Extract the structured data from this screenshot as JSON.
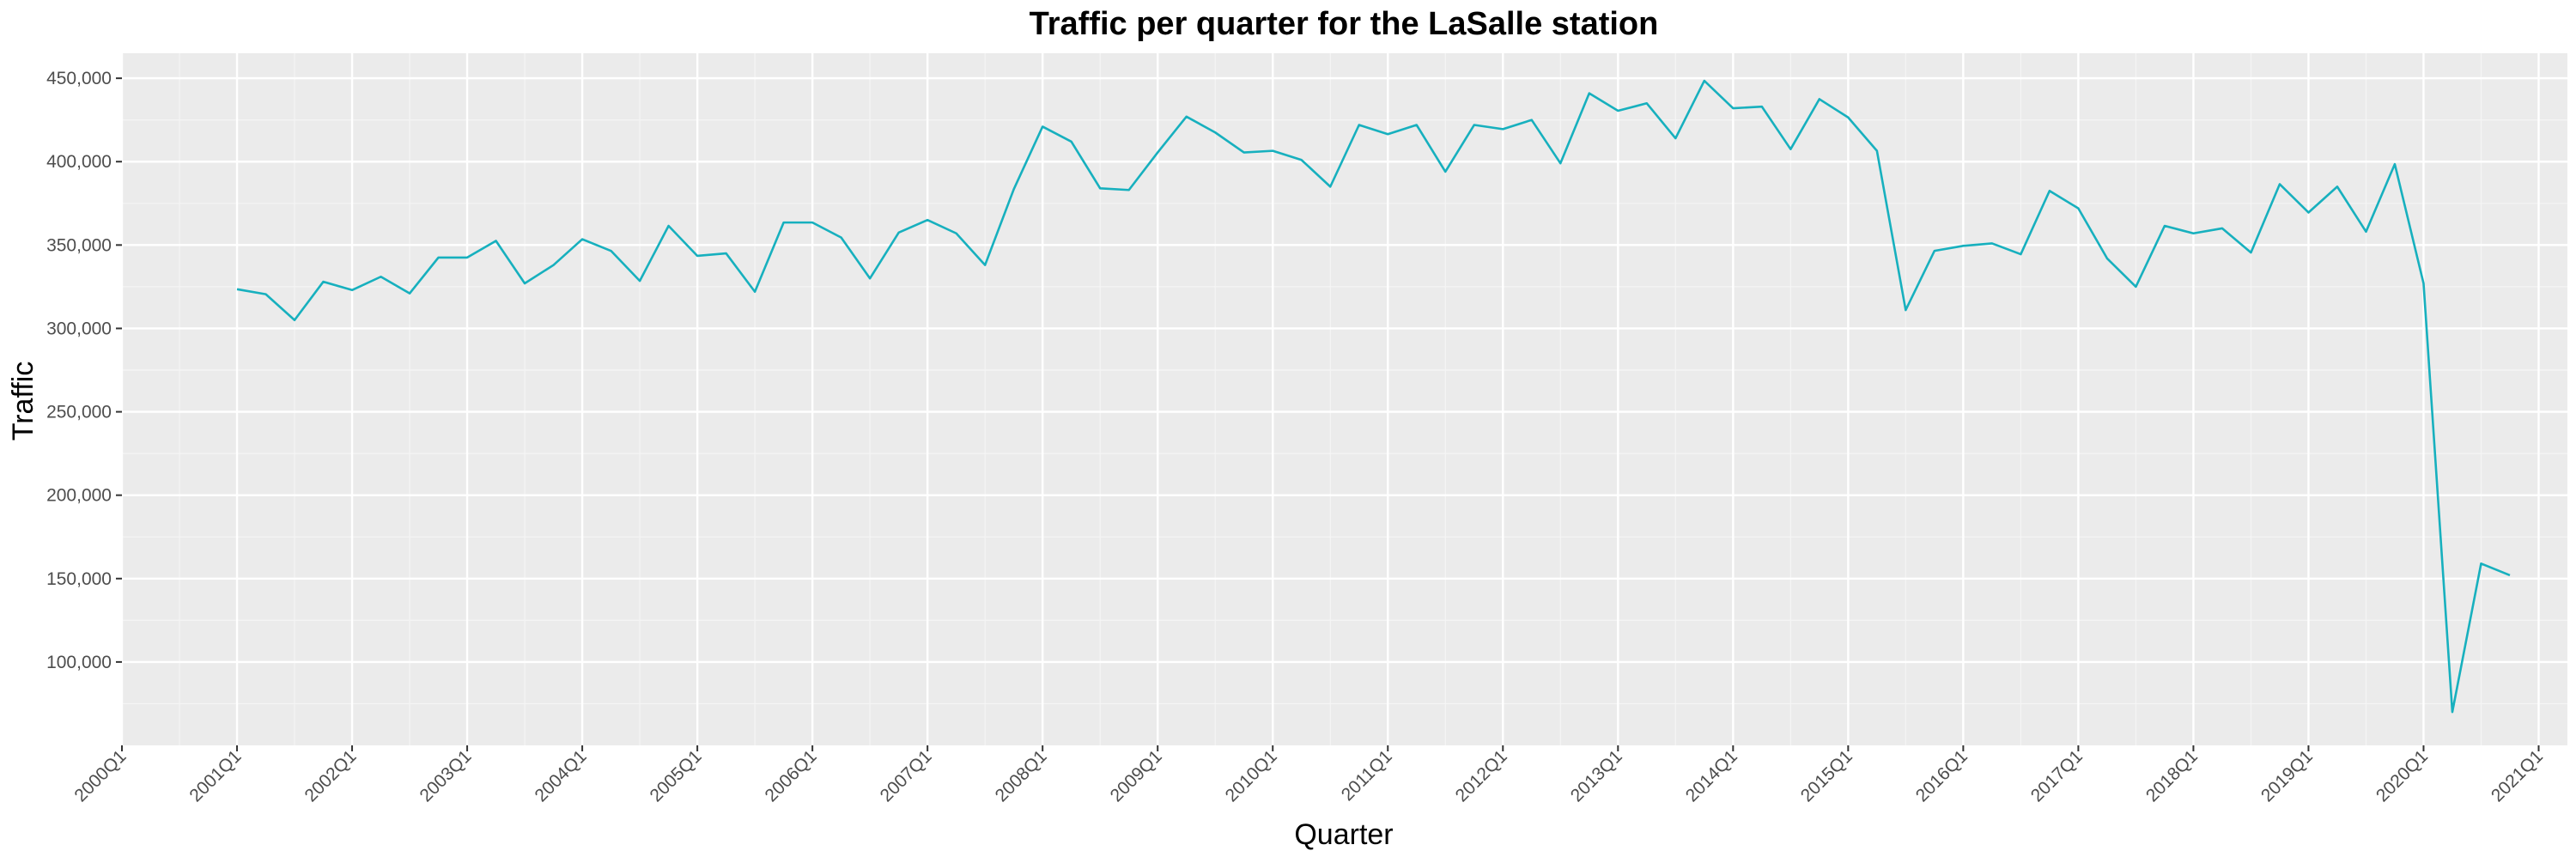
{
  "chart_data": {
    "type": "line",
    "title": "Traffic per quarter for the LaSalle station",
    "xlabel": "Quarter",
    "ylabel": "Traffic",
    "grid": true,
    "legend": "none",
    "colors": {
      "line": "#17b0be",
      "panel": "#ebebeb",
      "grid_major": "#ffffff",
      "grid_minor": "#f5f5f5"
    },
    "ylim": [
      50000,
      465000
    ],
    "y_ticks": [
      100000,
      150000,
      200000,
      250000,
      300000,
      350000,
      400000,
      450000
    ],
    "y_tick_labels": [
      "100,000",
      "150,000",
      "200,000",
      "250,000",
      "300,000",
      "350,000",
      "400,000",
      "450,000"
    ],
    "x_ticks": [
      "2000Q1",
      "2001Q1",
      "2002Q1",
      "2003Q1",
      "2004Q1",
      "2005Q1",
      "2006Q1",
      "2007Q1",
      "2008Q1",
      "2009Q1",
      "2010Q1",
      "2011Q1",
      "2012Q1",
      "2013Q1",
      "2014Q1",
      "2015Q1",
      "2016Q1",
      "2017Q1",
      "2018Q1",
      "2019Q1",
      "2020Q1",
      "2021Q1"
    ],
    "x_range": [
      "2000Q1",
      "2021Q2"
    ],
    "x": [
      "2001Q1",
      "2001Q2",
      "2001Q3",
      "2001Q4",
      "2002Q1",
      "2002Q2",
      "2002Q3",
      "2002Q4",
      "2003Q1",
      "2003Q2",
      "2003Q3",
      "2003Q4",
      "2004Q1",
      "2004Q2",
      "2004Q3",
      "2004Q4",
      "2005Q1",
      "2005Q2",
      "2005Q3",
      "2005Q4",
      "2006Q1",
      "2006Q2",
      "2006Q3",
      "2006Q4",
      "2007Q1",
      "2007Q2",
      "2007Q3",
      "2007Q4",
      "2008Q1",
      "2008Q2",
      "2008Q3",
      "2008Q4",
      "2009Q1",
      "2009Q2",
      "2009Q3",
      "2009Q4",
      "2010Q1",
      "2010Q2",
      "2010Q3",
      "2010Q4",
      "2011Q1",
      "2011Q2",
      "2011Q3",
      "2011Q4",
      "2012Q1",
      "2012Q2",
      "2012Q3",
      "2012Q4",
      "2013Q1",
      "2013Q2",
      "2013Q3",
      "2013Q4",
      "2014Q1",
      "2014Q2",
      "2014Q3",
      "2014Q4",
      "2015Q1",
      "2015Q2",
      "2015Q3",
      "2015Q4",
      "2016Q1",
      "2016Q2",
      "2016Q3",
      "2016Q4",
      "2017Q1",
      "2017Q2",
      "2017Q3",
      "2017Q4",
      "2018Q1",
      "2018Q2",
      "2018Q3",
      "2018Q4",
      "2019Q1",
      "2019Q2",
      "2019Q3",
      "2019Q4",
      "2020Q1",
      "2020Q2",
      "2020Q3",
      "2020Q4"
    ],
    "series": [
      {
        "values": [
          323500,
          320500,
          305000,
          328000,
          323000,
          331000,
          321000,
          342500,
          342500,
          352500,
          327000,
          338000,
          353500,
          346500,
          328500,
          361500,
          343500,
          345000,
          322000,
          363500,
          363500,
          354500,
          330000,
          357500,
          365000,
          357000,
          338000,
          383500,
          421000,
          412000,
          384000,
          383000,
          405500,
          427000,
          417500,
          405500,
          406500,
          401000,
          385000,
          422000,
          416500,
          422000,
          394000,
          422000,
          419500,
          425000,
          399000,
          441000,
          430500,
          435000,
          414000,
          448500,
          432000,
          433000,
          407500,
          437500,
          426500,
          406500,
          311000,
          346500,
          349500,
          351000,
          344500,
          382500,
          372000,
          342000,
          325000,
          361500,
          357000,
          360000,
          345500,
          386500,
          369500,
          385000,
          358000,
          398500,
          327000,
          70000,
          159000,
          152000
        ]
      }
    ]
  }
}
